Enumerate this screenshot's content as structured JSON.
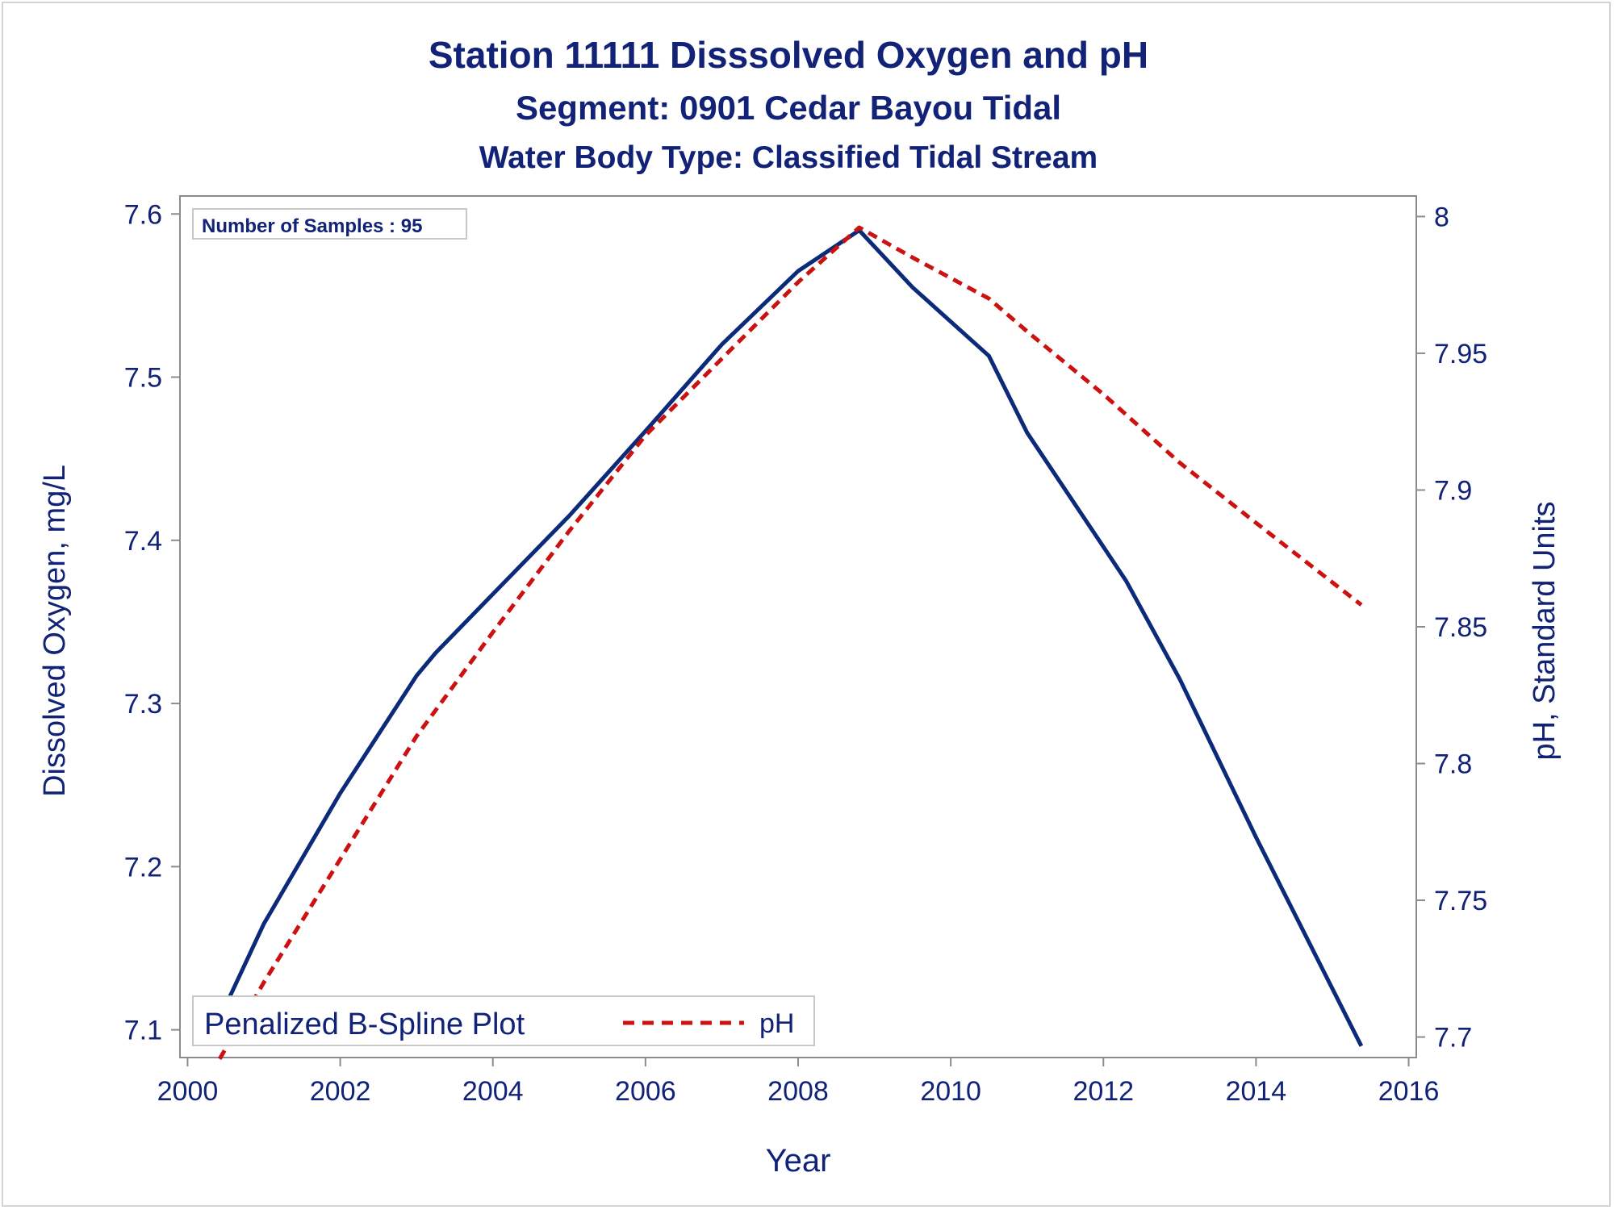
{
  "colors": {
    "text": "#112277",
    "do_line": "#0b2a7a",
    "ph_line": "#cc1111",
    "axis": "#8c8c8c",
    "box_border": "#c8c8c8"
  },
  "chart_data": {
    "type": "line",
    "title": "Station 11111   Disssolved Oxygen and pH",
    "subtitle": "Segment: 0901  Cedar Bayou Tidal",
    "subtitle2": "Water Body Type: Classified Tidal Stream",
    "xlabel": "Year",
    "ylabel": "Dissolved Oxygen, mg/L",
    "y2label": "pH, Standard Units",
    "xlim": [
      1999.9,
      2016.1
    ],
    "ylim": [
      7.083,
      7.611
    ],
    "y2lim": [
      7.6925,
      8.0075
    ],
    "xticks": [
      "2000",
      "2002",
      "2004",
      "2006",
      "2008",
      "2010",
      "2012",
      "2014",
      "2016"
    ],
    "yticks": [
      "7.1",
      "7.2",
      "7.3",
      "7.4",
      "7.5",
      "7.6"
    ],
    "y2ticks": [
      "7.7",
      "7.75",
      "7.8",
      "7.85",
      "7.9",
      "7.95",
      "8"
    ],
    "grid": false,
    "annotation": "Number of Samples : 95",
    "legend": {
      "position": "bottom-left",
      "title": "Penalized B-Spline Plot",
      "entries": [
        "pH"
      ]
    },
    "series": [
      {
        "name": "",
        "axis": "left",
        "style": "solid",
        "x": [
          2000.42,
          2001.0,
          2002.0,
          2003.0,
          2003.25,
          2004.0,
          2005.0,
          2006.0,
          2007.0,
          2008.0,
          2008.8,
          2009.5,
          2010.5,
          2011.0,
          2012.0,
          2012.3,
          2013.0,
          2014.0,
          2015.38
        ],
        "values": [
          7.107,
          7.165,
          7.245,
          7.317,
          7.331,
          7.367,
          7.415,
          7.467,
          7.52,
          7.565,
          7.59,
          7.555,
          7.513,
          7.466,
          7.396,
          7.375,
          7.315,
          7.218,
          7.09
        ]
      },
      {
        "name": "pH",
        "axis": "right",
        "style": "dashed",
        "x": [
          2000.42,
          2001.0,
          2002.0,
          2003.0,
          2004.0,
          2005.0,
          2006.0,
          2007.0,
          2008.0,
          2008.8,
          2009.5,
          2010.5,
          2011.0,
          2012.0,
          2013.0,
          2014.0,
          2015.38
        ],
        "values": [
          7.692,
          7.72,
          7.765,
          7.81,
          7.848,
          7.885,
          7.92,
          7.948,
          7.976,
          7.996,
          7.985,
          7.97,
          7.958,
          7.935,
          7.91,
          7.888,
          7.858
        ]
      }
    ]
  }
}
